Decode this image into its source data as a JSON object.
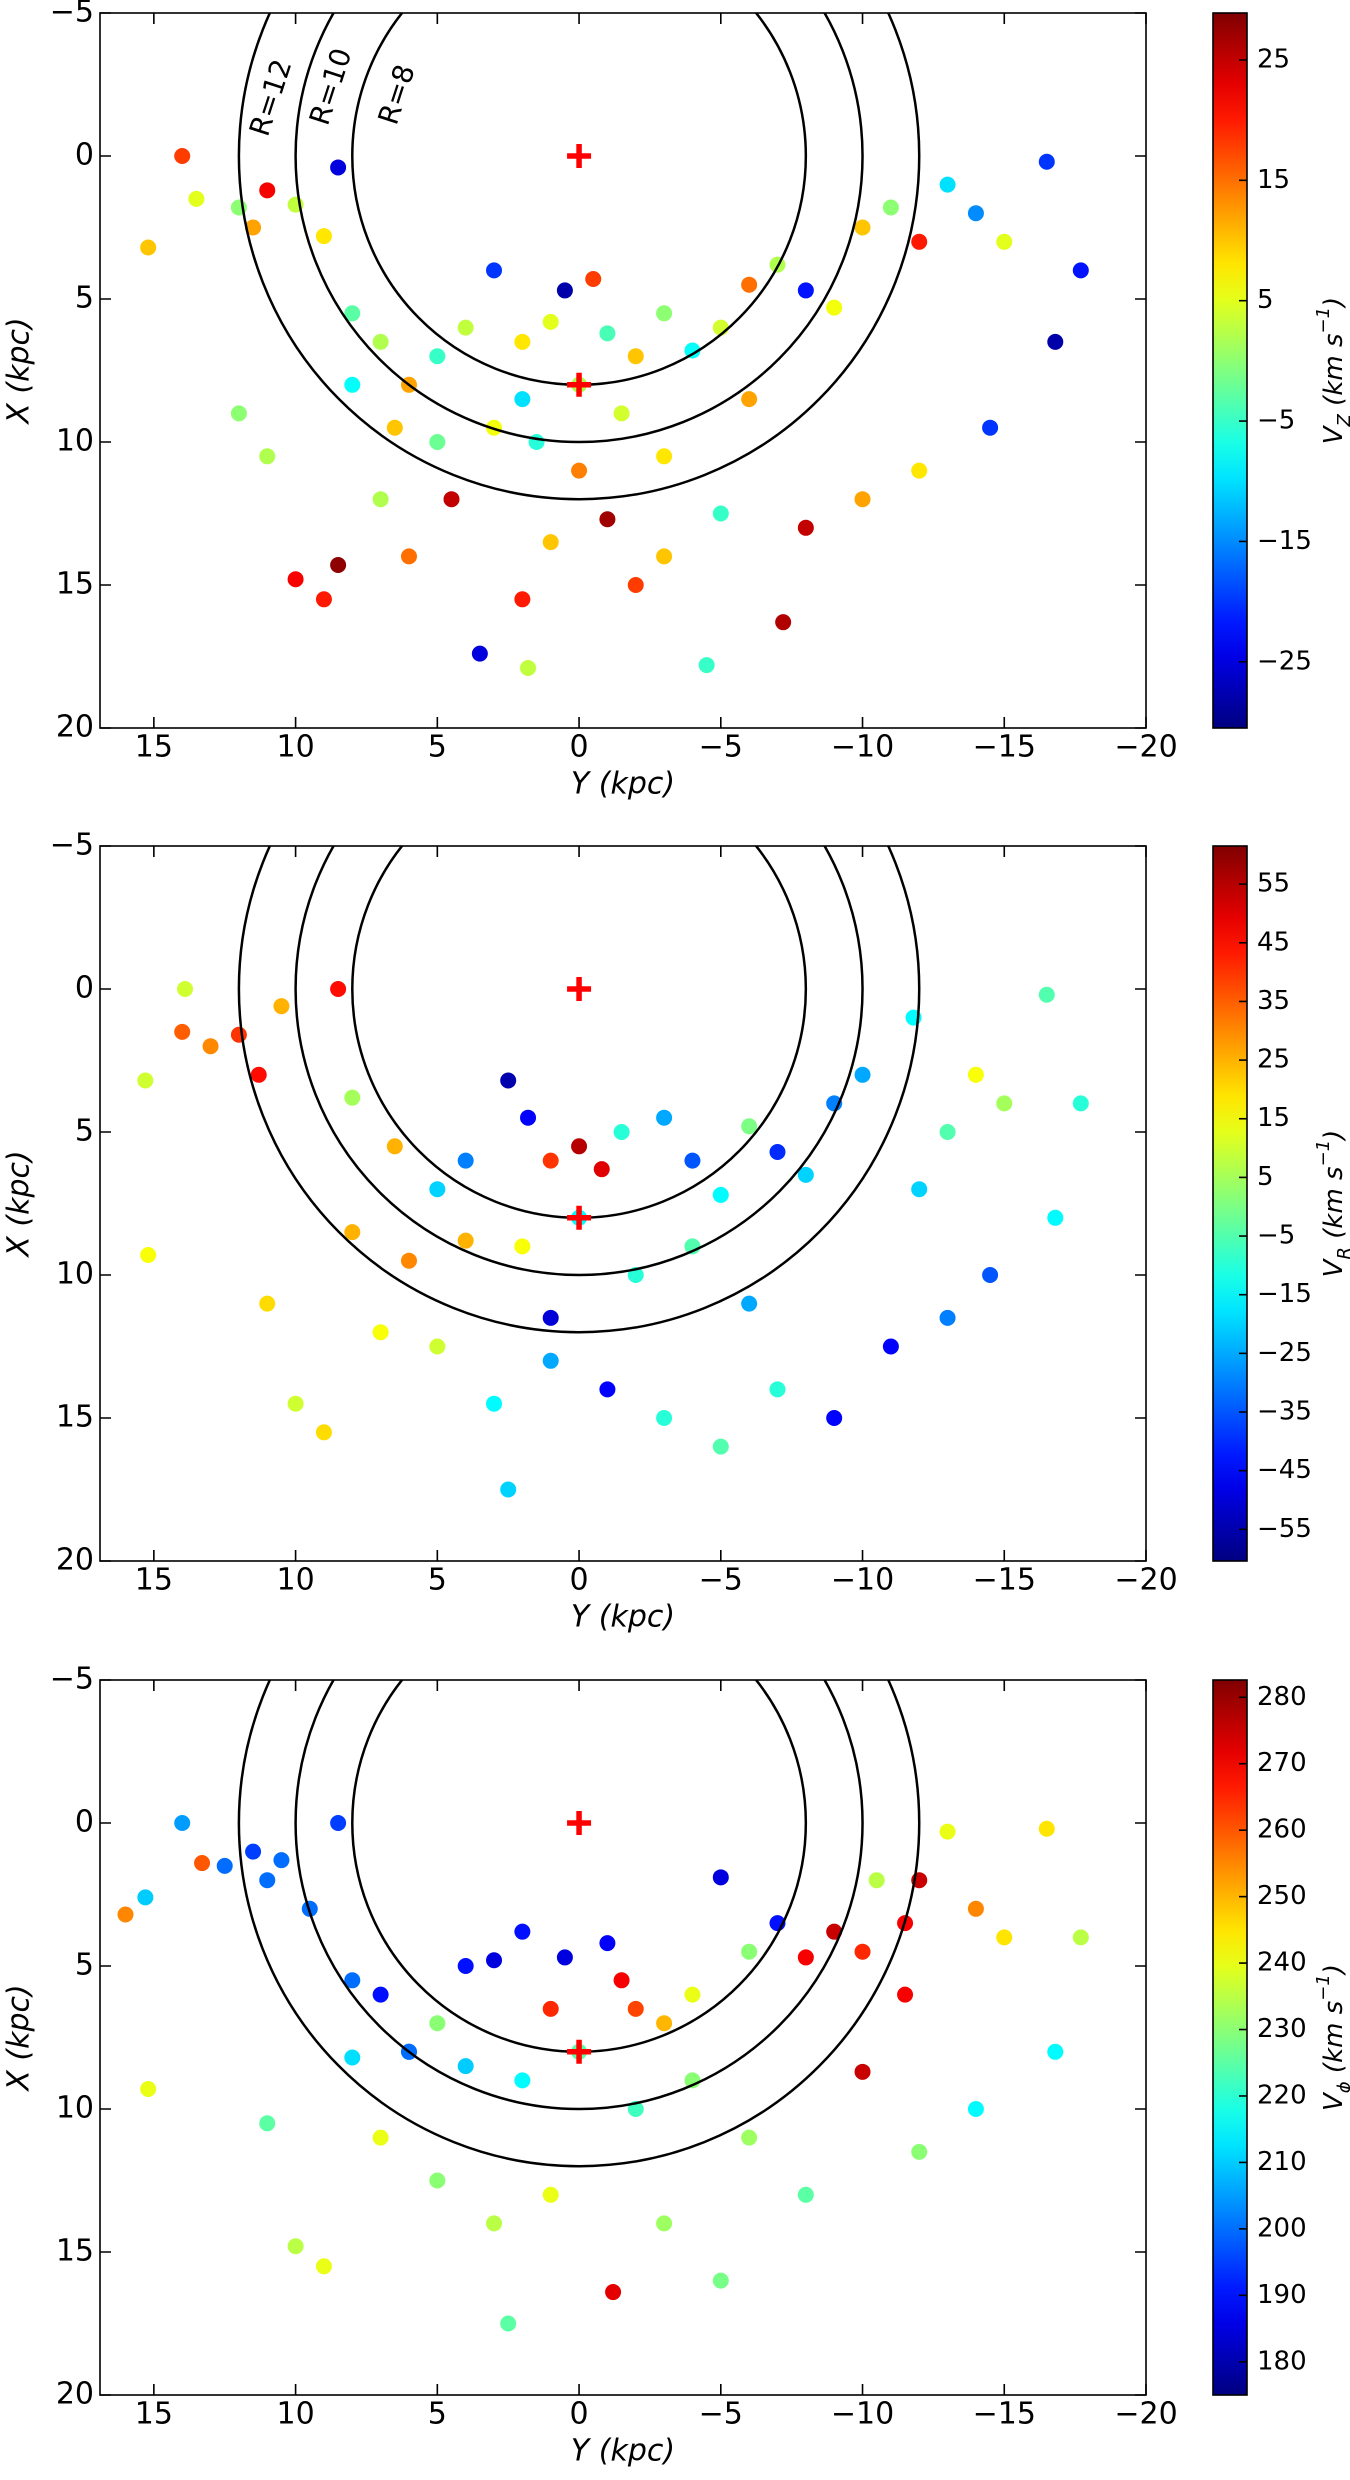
{
  "chart_data": [
    {
      "type": "scatter",
      "xlabel": "Y (kpc)",
      "ylabel": "X (kpc)",
      "xlim": [
        -20,
        16.9
      ],
      "x_inverted": true,
      "xticks": [
        15,
        10,
        5,
        0,
        {
          "value": -5,
          "label": "−5"
        },
        {
          "value": -10,
          "label": "−10"
        },
        {
          "value": -15,
          "label": "−15"
        },
        {
          "value": -20,
          "label": "−20"
        }
      ],
      "ylim": [
        -5,
        20
      ],
      "y_inverted": true,
      "yticks": [
        {
          "value": -5,
          "label": "−5"
        },
        0,
        5,
        10,
        15,
        20
      ],
      "circles": [
        12,
        10,
        8
      ],
      "circle_labels": [
        "R=12",
        "R=10",
        "R=8"
      ],
      "markers": {
        "x": [
          0,
          0
        ],
        "y": [
          0,
          8
        ],
        "color": "#ff0000"
      },
      "cmap": "jet",
      "x": [
        15.2,
        14,
        13.5,
        12,
        11,
        11.5,
        10,
        9,
        8.5,
        8,
        7,
        6,
        5,
        4,
        3,
        2,
        1,
        0.5,
        -0.5,
        -1,
        -2,
        -3,
        -4,
        -5,
        -6,
        -7,
        -8,
        -9,
        -10,
        -11,
        -12,
        -13,
        -14,
        -15,
        -16.5,
        -17.7,
        -16.8,
        -14.5,
        -12,
        -10,
        -8,
        -7.2,
        -5,
        -4.5,
        -3,
        -2,
        -1,
        0,
        1,
        1.8,
        2,
        3.5,
        4.5,
        6,
        7,
        8.5,
        9,
        10,
        11,
        12,
        0,
        -1.5,
        1.5,
        3,
        -3,
        5,
        -6,
        6.5,
        8,
        2
      ],
      "y": [
        3.2,
        0,
        1.5,
        1.8,
        1.2,
        2.5,
        1.7,
        2.8,
        0.4,
        5.5,
        6.5,
        8,
        7,
        6,
        4,
        6.5,
        5.8,
        4.7,
        4.3,
        6.2,
        7,
        5.5,
        6.8,
        6,
        4.5,
        3.8,
        4.7,
        5.3,
        2.5,
        1.8,
        3,
        1,
        2,
        3,
        0.2,
        4,
        6.5,
        9.5,
        11,
        12,
        13,
        16.3,
        12.5,
        17.8,
        14,
        15,
        12.7,
        11,
        13.5,
        17.9,
        15.5,
        17.4,
        12,
        14,
        12,
        14.3,
        15.5,
        14.8,
        10.5,
        9,
        8,
        9,
        10,
        9.5,
        10.5,
        10,
        8.5,
        9.5,
        8,
        8.5
      ],
      "c": [
        10,
        18,
        5,
        0,
        22,
        12,
        3,
        8,
        -25,
        -3,
        2,
        12,
        -5,
        3,
        -20,
        8,
        5,
        -28,
        18,
        -4,
        10,
        0,
        -8,
        4,
        15,
        2,
        -22,
        6,
        10,
        0,
        20,
        -10,
        -15,
        5,
        -20,
        -22,
        -28,
        -20,
        8,
        12,
        25,
        26,
        -5,
        -5,
        10,
        18,
        27,
        14,
        10,
        3,
        20,
        -25,
        25,
        15,
        2,
        28,
        20,
        22,
        2,
        0,
        2,
        4,
        -6,
        6,
        8,
        -2,
        12,
        10,
        -8,
        -10
      ],
      "colorbar": {
        "label": [
          "V",
          "Z",
          " (km s",
          "−1",
          ")"
        ],
        "clim": [
          -30.5,
          28.9
        ],
        "ticks": [
          {
            "value": -25,
            "label": "−25"
          },
          {
            "value": -15,
            "label": "−15"
          },
          {
            "value": -5,
            "label": "−5"
          },
          5,
          15,
          25
        ]
      }
    },
    {
      "type": "scatter",
      "xlabel": "Y (kpc)",
      "ylabel": "X (kpc)",
      "xlim": [
        -20,
        16.9
      ],
      "x_inverted": true,
      "xticks": [
        15,
        10,
        5,
        0,
        {
          "value": -5,
          "label": "−5"
        },
        {
          "value": -10,
          "label": "−10"
        },
        {
          "value": -15,
          "label": "−15"
        },
        {
          "value": -20,
          "label": "−20"
        }
      ],
      "ylim": [
        -5,
        20
      ],
      "y_inverted": true,
      "yticks": [
        {
          "value": -5,
          "label": "−5"
        },
        0,
        5,
        10,
        15,
        20
      ],
      "circles": [
        12,
        10,
        8
      ],
      "markers": {
        "x": [
          0,
          0
        ],
        "y": [
          0,
          8
        ],
        "color": "#ff0000"
      },
      "cmap": "jet",
      "x": [
        15.2,
        15.3,
        13.9,
        14,
        13,
        12,
        11.3,
        10.5,
        8.5,
        8,
        6.5,
        5,
        4,
        2.5,
        1.8,
        1,
        0,
        -0.8,
        -1.5,
        -3,
        -4,
        -5,
        -6,
        -7,
        -8,
        -9,
        -10,
        -11.8,
        -12,
        -13,
        -14,
        -15,
        -16.5,
        -17.7,
        -16.8,
        -14.5,
        -13,
        -11,
        -9,
        -7,
        -5,
        -3,
        -1,
        1,
        2.5,
        3,
        5,
        7,
        9,
        10,
        11,
        0,
        2,
        -2,
        4,
        -4,
        6,
        8,
        -6,
        1
      ],
      "y": [
        9.3,
        3.2,
        0,
        1.5,
        2,
        1.6,
        3,
        0.6,
        0,
        3.8,
        5.5,
        7,
        6,
        3.2,
        4.5,
        6,
        5.5,
        6.3,
        5,
        4.5,
        6,
        7.2,
        4.8,
        5.7,
        6.5,
        4,
        3,
        1,
        7,
        5,
        3,
        4,
        0.2,
        4,
        8,
        10,
        11.5,
        12.5,
        15,
        14,
        16,
        15,
        14,
        13,
        17.5,
        14.5,
        12.5,
        12,
        15.5,
        14.5,
        11,
        8,
        9,
        10,
        8.8,
        9,
        9.5,
        8.5,
        11,
        11.5
      ],
      "c": [
        15,
        10,
        10,
        35,
        30,
        40,
        45,
        25,
        45,
        5,
        25,
        -20,
        -30,
        -55,
        -45,
        40,
        55,
        50,
        -10,
        -25,
        -35,
        -15,
        0,
        -40,
        -20,
        -30,
        -25,
        -15,
        -20,
        -5,
        15,
        5,
        -5,
        -10,
        -15,
        -35,
        -30,
        -45,
        -45,
        -10,
        -5,
        -10,
        -45,
        -25,
        -20,
        -15,
        10,
        15,
        20,
        10,
        20,
        -15,
        15,
        -10,
        25,
        -5,
        30,
        25,
        -25,
        -50
      ],
      "colorbar": {
        "label": [
          "V",
          "R",
          " (km s",
          "−1",
          ")"
        ],
        "clim": [
          -60.4,
          61.5
        ],
        "ticks": [
          {
            "value": -55,
            "label": "−55"
          },
          {
            "value": -45,
            "label": "−45"
          },
          {
            "value": -35,
            "label": "−35"
          },
          {
            "value": -25,
            "label": "−25"
          },
          {
            "value": -15,
            "label": "−15"
          },
          {
            "value": -5,
            "label": "−5"
          },
          5,
          15,
          25,
          35,
          45,
          55
        ]
      }
    },
    {
      "type": "scatter",
      "xlabel": "Y (kpc)",
      "ylabel": "X (kpc)",
      "xlim": [
        -20,
        16.9
      ],
      "x_inverted": true,
      "xticks": [
        15,
        10,
        5,
        0,
        {
          "value": -5,
          "label": "−5"
        },
        {
          "value": -10,
          "label": "−10"
        },
        {
          "value": -15,
          "label": "−15"
        },
        {
          "value": -20,
          "label": "−20"
        }
      ],
      "ylim": [
        -5,
        20
      ],
      "y_inverted": true,
      "yticks": [
        {
          "value": -5,
          "label": "−5"
        },
        0,
        5,
        10,
        15,
        20
      ],
      "circles": [
        12,
        10,
        8
      ],
      "markers": {
        "x": [
          0,
          0
        ],
        "y": [
          0,
          8
        ],
        "color": "#ff0000"
      },
      "cmap": "jet",
      "x": [
        15.2,
        16,
        15.3,
        14,
        13.3,
        12.5,
        11.5,
        11,
        10.5,
        9.5,
        8.5,
        8,
        7,
        6,
        5,
        4,
        3,
        2,
        1,
        0.5,
        -1,
        -1.5,
        -2,
        -3,
        -5,
        -4,
        -6,
        -7,
        -8,
        -9,
        -10,
        -10.5,
        -11.5,
        -11.5,
        -12,
        -13,
        -14,
        -15,
        -16.5,
        -17.7,
        -16.8,
        -14,
        -12,
        -10,
        -8,
        -5,
        -3,
        -1.2,
        1,
        2.5,
        3,
        5,
        7,
        9,
        10,
        11,
        0,
        2,
        -2,
        4,
        -4,
        6,
        8,
        -6
      ],
      "y": [
        9.3,
        3.2,
        2.6,
        0,
        1.4,
        1.5,
        1,
        2,
        1.3,
        3,
        0,
        5.5,
        6,
        8,
        7,
        5,
        4.8,
        3.8,
        6.5,
        4.7,
        4.2,
        5.5,
        6.5,
        7,
        1.9,
        6,
        4.5,
        3.5,
        4.7,
        3.8,
        4.5,
        2,
        6,
        3.5,
        2,
        0.3,
        3,
        4,
        0.2,
        4,
        8,
        10,
        11.5,
        8.7,
        13,
        16,
        14,
        16.4,
        13,
        17.5,
        14,
        12.5,
        11,
        15.5,
        14.8,
        10.5,
        8,
        9,
        10,
        8.5,
        9,
        8,
        8.2,
        11
      ],
      "c": [
        240,
        255,
        210,
        205,
        260,
        200,
        195,
        200,
        200,
        200,
        195,
        200,
        190,
        205,
        230,
        190,
        185,
        190,
        265,
        185,
        188,
        270,
        262,
        250,
        185,
        240,
        230,
        190,
        270,
        275,
        265,
        235,
        270,
        270,
        275,
        240,
        255,
        245,
        245,
        235,
        215,
        215,
        230,
        275,
        225,
        228,
        232,
        272,
        240,
        225,
        235,
        230,
        240,
        240,
        235,
        225,
        225,
        215,
        222,
        210,
        230,
        200,
        212,
        232
      ],
      "colorbar": {
        "label": [
          "V",
          "ϕ",
          " (km s",
          "−1",
          ")"
        ],
        "clim": [
          175,
          282.6
        ],
        "ticks": [
          180,
          190,
          200,
          210,
          220,
          230,
          240,
          250,
          260,
          270,
          280
        ]
      }
    }
  ]
}
